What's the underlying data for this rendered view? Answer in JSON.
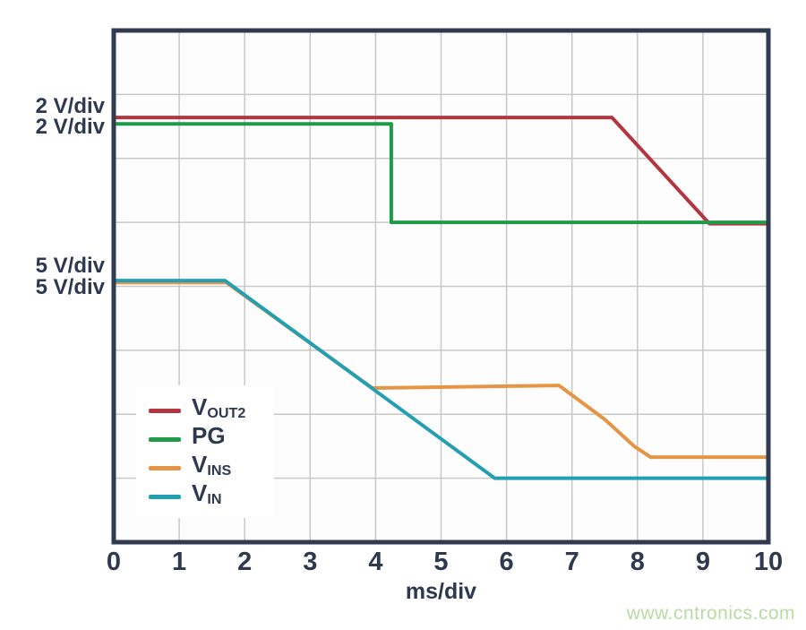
{
  "colors": {
    "frame": "#303b52",
    "grid": "#c8c8c8",
    "plot_bg": "#fdfdfd",
    "text": "#2e3950",
    "watermark": "#b9dba2"
  },
  "watermark": "www.cntronics.com",
  "chart_data": {
    "type": "line",
    "title": "",
    "xlabel": "ms/div",
    "ylabel": "",
    "x_range": [
      0,
      10
    ],
    "x_ticks": [
      "0",
      "1",
      "2",
      "3",
      "4",
      "5",
      "6",
      "7",
      "8",
      "9",
      "10"
    ],
    "y_divisions": 8,
    "grid": true,
    "legend_position": "inside-lower-left",
    "left_axis_labels": [
      "2 V/div",
      "2 V/div",
      "5 V/div",
      "5 V/div"
    ],
    "series": [
      {
        "name": "VOUT2",
        "legend_main": "V",
        "legend_sub": "OUT2",
        "scale": "2 V/div",
        "color": "#b23540",
        "points_units": "x in ms divisions (0-10), y in grid divisions from top (0-8)",
        "points": [
          [
            0,
            1.36
          ],
          [
            7.61,
            1.36
          ],
          [
            9.1,
            3.02
          ],
          [
            10,
            3.02
          ]
        ]
      },
      {
        "name": "PG",
        "legend_main": "PG",
        "legend_sub": "",
        "scale": "2 V/div",
        "color": "#1f9a48",
        "points_units": "x in ms divisions (0-10), y in grid divisions from top (0-8)",
        "points": [
          [
            0,
            1.46
          ],
          [
            4.24,
            1.46
          ],
          [
            4.24,
            3.0
          ],
          [
            10,
            3.0
          ]
        ]
      },
      {
        "name": "VINS",
        "legend_main": "V",
        "legend_sub": "INS",
        "scale": "5 V/div",
        "color": "#e59546",
        "points_units": "x in ms divisions (0-10), y in grid divisions from top (0-8)",
        "points": [
          [
            0,
            3.94
          ],
          [
            1.72,
            3.94
          ],
          [
            3.95,
            5.59
          ],
          [
            6.8,
            5.55
          ],
          [
            7.5,
            6.08
          ],
          [
            7.95,
            6.5
          ],
          [
            8.2,
            6.67
          ],
          [
            10,
            6.67
          ]
        ]
      },
      {
        "name": "VIN",
        "legend_main": "V",
        "legend_sub": "IN",
        "scale": "5 V/div",
        "color": "#239fb4",
        "points_units": "x in ms divisions (0-10), y in grid divisions from top (0-8)",
        "points": [
          [
            0,
            3.91
          ],
          [
            1.7,
            3.91
          ],
          [
            5.82,
            7.0
          ],
          [
            10,
            7.0
          ]
        ]
      }
    ]
  }
}
